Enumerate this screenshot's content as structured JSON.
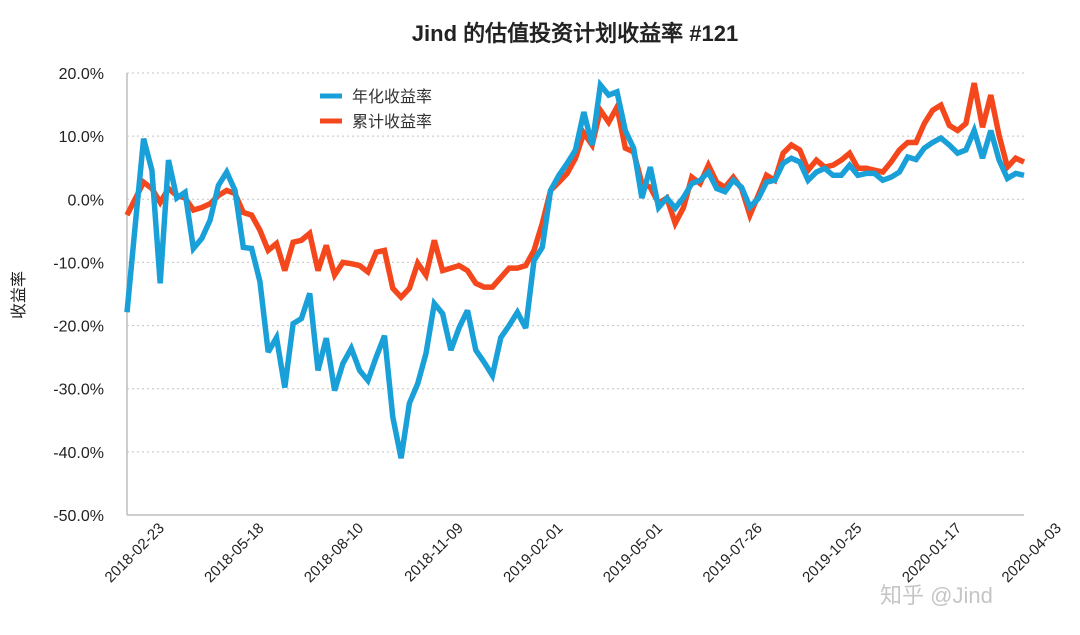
{
  "chart_data": {
    "type": "line",
    "title": "Jind 的估值投资计划收益率 #121",
    "xlabel": "",
    "ylabel": "收益率",
    "ylim": [
      -50,
      20
    ],
    "y_ticks": [
      20,
      10,
      0,
      -10,
      -20,
      -30,
      -40,
      -50
    ],
    "y_tick_format": "percent_1dp",
    "grid": "horizontal-dotted",
    "legend_position": "top-left",
    "x_tick_labels": [
      "2018-02-23",
      "2018-05-18",
      "2018-08-10",
      "2018-11-09",
      "2019-02-01",
      "2019-05-01",
      "2019-07-26",
      "2019-10-25",
      "2020-01-17",
      "2020-04-03"
    ],
    "x_tick_every": 12,
    "series": [
      {
        "name": "年化收益率",
        "color": "#1aa0d8",
        "values": [
          -17.9,
          -4,
          9.6,
          4.6,
          -13.3,
          6.2,
          0.2,
          1.1,
          -7.8,
          -6.2,
          -3.3,
          2.2,
          4.3,
          1.4,
          -7.6,
          -7.8,
          -13,
          -24.2,
          -21.9,
          -29.8,
          -19.7,
          -18.9,
          -14.9,
          -27.1,
          -22.0,
          -30.3,
          -26.0,
          -23.6,
          -27.1,
          -28.7,
          -25.0,
          -21.6,
          -34.5,
          -41.0,
          -32.3,
          -29.2,
          -24.4,
          -16.5,
          -18.1,
          -23.9,
          -20.3,
          -17.6,
          -23.9,
          -25.8,
          -27.9,
          -21.9,
          -20.0,
          -17.9,
          -20.4,
          -9.7,
          -7.6,
          1.4,
          3.8,
          5.7,
          7.8,
          13.8,
          8.6,
          18.1,
          16.5,
          17.0,
          10.9,
          8.1,
          0.2,
          5.1,
          -1.3,
          0.2,
          -1.4,
          0.3,
          2.5,
          3.0,
          4.3,
          1.7,
          1.2,
          3.0,
          1.9,
          -1.2,
          0.1,
          2.7,
          3.0,
          5.7,
          6.5,
          5.9,
          3.0,
          4.3,
          4.9,
          3.8,
          3.8,
          5.4,
          3.8,
          4.1,
          4.1,
          3.0,
          3.5,
          4.3,
          6.7,
          6.3,
          8.1,
          9.0,
          9.7,
          8.6,
          7.3,
          7.8,
          10.9,
          6.5,
          10.9,
          6.2,
          3.3,
          4.1,
          3.8
        ]
      },
      {
        "name": "累计收益率",
        "color": "#f5471c",
        "values": [
          -2.5,
          0.1,
          2.7,
          1.7,
          -0.5,
          1.7,
          0.6,
          0.2,
          -1.7,
          -1.3,
          -0.7,
          0.6,
          1.4,
          0.9,
          -2.1,
          -2.5,
          -4.9,
          -8.1,
          -7.0,
          -11.3,
          -6.8,
          -6.5,
          -5.4,
          -11.3,
          -7.3,
          -12.0,
          -10.0,
          -10.2,
          -10.5,
          -11.5,
          -8.4,
          -8.1,
          -14.1,
          -15.5,
          -14.1,
          -10.1,
          -12.0,
          -6.5,
          -11.3,
          -10.9,
          -10.5,
          -11.3,
          -13.3,
          -13.9,
          -13.9,
          -12.4,
          -10.9,
          -10.9,
          -10.5,
          -8.1,
          -3.8,
          1.4,
          2.7,
          4.1,
          6.5,
          10.5,
          8.6,
          14.1,
          12.2,
          14.6,
          8.1,
          7.5,
          2.5,
          1.9,
          -0.6,
          0.2,
          -3.8,
          -1.3,
          3.5,
          2.5,
          5.4,
          2.7,
          1.9,
          3.5,
          1.7,
          -2.5,
          0.6,
          3.8,
          3.0,
          7.3,
          8.6,
          7.8,
          4.6,
          6.2,
          5.1,
          5.4,
          6.2,
          7.3,
          4.9,
          4.9,
          4.6,
          4.3,
          5.9,
          7.8,
          9.0,
          9.0,
          12.0,
          14.1,
          14.9,
          11.7,
          10.9,
          12.0,
          18.4,
          11.4,
          16.5,
          10.1,
          5.1,
          6.5,
          5.9
        ]
      }
    ]
  },
  "watermark": "知乎 @Jind"
}
